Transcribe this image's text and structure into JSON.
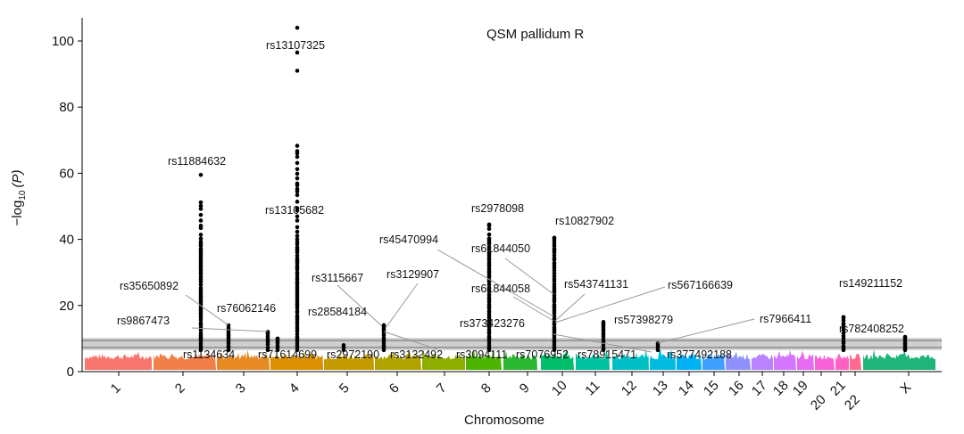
{
  "chart_data": {
    "type": "scatter",
    "subtype": "manhattan",
    "title": "QSM pallidum R",
    "xlabel": "Chromosome",
    "ylabel_main": "−log",
    "ylabel_sub": "10",
    "ylabel_var": "(P)",
    "ylim": [
      0,
      105
    ],
    "yticks": [
      "0",
      "20",
      "40",
      "60",
      "80",
      "100"
    ],
    "chromosomes": [
      "1",
      "2",
      "3",
      "4",
      "5",
      "6",
      "7",
      "8",
      "9",
      "10",
      "11",
      "12",
      "13",
      "14",
      "15",
      "16",
      "17",
      "18",
      "19",
      "20",
      "21",
      "22",
      "X"
    ],
    "chromosome_colors": [
      "#f8766d",
      "#f07f4a",
      "#e78a24",
      "#dc8f00",
      "#c49a00",
      "#b0a200",
      "#8fad00",
      "#4cb400",
      "#2ab732",
      "#00be6c",
      "#00c0a0",
      "#00bfc4",
      "#00bae0",
      "#00b2f3",
      "#3fa0ff",
      "#8f91ff",
      "#b983ff",
      "#d376ff",
      "#e76bf3",
      "#f862d6",
      "#ff61c3",
      "#ff6a8d",
      "#1fb47a"
    ],
    "thresholds": [
      7.3,
      9.4
    ],
    "background_max": 6,
    "peaks": [
      {
        "chr": "2",
        "max": 59.5
      },
      {
        "chr": "3",
        "max": 14
      },
      {
        "chr": "3",
        "max": 12
      },
      {
        "chr": "3",
        "max": 10
      },
      {
        "chr": "4",
        "max": 104
      },
      {
        "chr": "5",
        "max": 8
      },
      {
        "chr": "6",
        "max": 14
      },
      {
        "chr": "8",
        "max": 44.5
      },
      {
        "chr": "10",
        "max": 40.5
      },
      {
        "chr": "11",
        "max": 15
      },
      {
        "chr": "12",
        "max": 8.5
      },
      {
        "chr": "20",
        "max": 16.5
      },
      {
        "chr": "X",
        "max": 10.5
      }
    ],
    "annotations": [
      "rs13107325",
      "rs11884632",
      "rs13105682",
      "rs2978098",
      "rs10827902",
      "rs45470994",
      "rs61844050",
      "rs3115667",
      "rs3129907",
      "rs35650892",
      "rs543741131",
      "rs567166639",
      "rs61844058",
      "rs149211152",
      "rs76062146",
      "rs28584184",
      "rs9867473",
      "rs373423276",
      "rs57398279",
      "rs7966411",
      "rs782408252",
      "rs1134634",
      "rs71614699",
      "rs2972190",
      "rs3132492",
      "rs3094111",
      "rs7076952",
      "rs78915471",
      "rs377492188"
    ]
  }
}
